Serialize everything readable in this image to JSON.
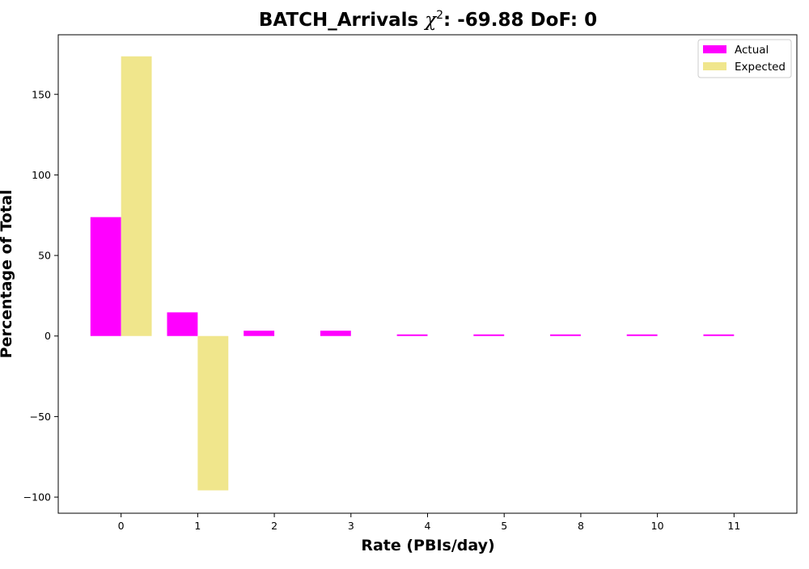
{
  "chart_data": {
    "type": "bar",
    "title_text": "BATCH_Arrivals ",
    "title_chi": "χ",
    "title_chi_exp": "2",
    "title_suffix": ": -69.88 DoF: 0",
    "xlabel": "Rate (PBIs/day)",
    "ylabel": "Percentage of Total",
    "categories": [
      "0",
      "1",
      "2",
      "3",
      "4",
      "5",
      "8",
      "10",
      "11"
    ],
    "ylim": [
      -110,
      187
    ],
    "yticks": [
      -100,
      -50,
      0,
      50,
      100,
      150
    ],
    "ytick_labels": [
      "−100",
      "−50",
      "0",
      "50",
      "100",
      "150"
    ],
    "grid": false,
    "legend_position": "upper right",
    "series": [
      {
        "name": "Actual",
        "color": "#ff00ff",
        "values": [
          73.8,
          14.7,
          3.3,
          3.3,
          1.0,
          1.0,
          1.0,
          1.0,
          1.0
        ]
      },
      {
        "name": "Expected",
        "color": "#f0e68c",
        "values": [
          173.6,
          -95.8,
          0,
          0,
          0,
          0,
          0,
          0,
          0
        ]
      }
    ]
  }
}
